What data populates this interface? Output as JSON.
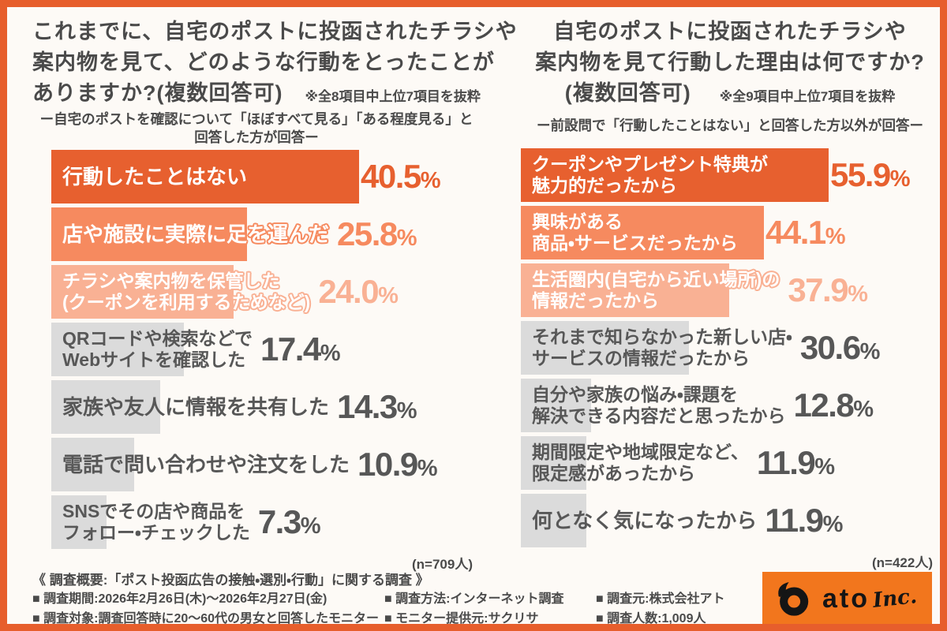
{
  "palette": {
    "frame_border": "#E75E2C",
    "background": "#FDFAF6",
    "rank1_orange": "#E7602F",
    "rank2_orange": "#F68A5F",
    "rank3_salmon": "#F9B194",
    "gray_bar": "#DBDBDB",
    "dark_text": "#4A4A4A",
    "gray_value_text": "#575757",
    "logo_orange": "#F2761D"
  },
  "chart_data": [
    {
      "type": "bar",
      "orientation": "horizontal",
      "title": "これまでに、自宅のポストに投函されたチラシや案内物を見て、どのような行動をとったことがありますか?(複数回答可)",
      "title_lines": [
        "これまでに、自宅のポストに投函されたチラシや",
        "案内物を見て、どのような行動をとったことが",
        "ありますか?(複数回答可)"
      ],
      "note": "※全8項目中上位7項目を抜粋",
      "subtitle_lines": [
        "ー自宅のポストを確認について「ほぼすべて見る」「ある程度見る」と",
        "回答した方が回答ー"
      ],
      "sample_label": "(n=709人)",
      "unit": "%",
      "xlim": [
        0,
        42
      ],
      "grid": false,
      "legend": false,
      "categories": [
        "行動したことはない",
        "店や施設に実際に足を運んだ",
        "チラシや案内物を保管した\n(クーポンを利用するためなど)",
        "QRコードや検索などで\nWebサイトを確認した",
        "家族や友人に情報を共有した",
        "電話で問い合わせや注文をした",
        "SNSでその店や商品を\nフォロー・チェックした"
      ],
      "values": [
        40.5,
        25.8,
        24.0,
        17.4,
        14.3,
        10.9,
        7.3
      ],
      "value_labels": [
        "40.5%",
        "25.8%",
        "24.0%",
        "17.4%",
        "14.3%",
        "10.9%",
        "7.3%"
      ],
      "bar_colors": [
        "#E7602F",
        "#F68A5F",
        "#F9B194",
        "#DBDBDB",
        "#DBDBDB",
        "#DBDBDB",
        "#DBDBDB"
      ],
      "label_colors": [
        "#FFFFFF",
        "#FFFFFF",
        "#FFFFFF",
        "#575757",
        "#575757",
        "#575757",
        "#575757"
      ],
      "value_colors": [
        "#E7602F",
        "#F68A5F",
        "#F9B194",
        "#575757",
        "#575757",
        "#575757",
        "#575757"
      ]
    },
    {
      "type": "bar",
      "orientation": "horizontal",
      "title": "自宅のポストに投函されたチラシや案内物を見て行動した理由は何ですか?(複数回答可)",
      "title_lines": [
        "自宅のポストに投函されたチラシや",
        "案内物を見て行動した理由は何ですか?",
        "(複数回答可)"
      ],
      "note": "※全9項目中上位7項目を抜粋",
      "subtitle_lines": [
        "ー前設問で「行動したことはない」と回答した方以外が回答ー"
      ],
      "sample_label": "(n=422人)",
      "unit": "%",
      "xlim": [
        0,
        58
      ],
      "grid": false,
      "legend": false,
      "categories": [
        "クーポンやプレゼント特典が\n魅力的だったから",
        "興味がある\n商品・サービスだったから",
        "生活圏内(自宅から近い場所)の\n情報だったから",
        "それまで知らなかった新しい店・\nサービスの情報だったから",
        "自分や家族の悩み・課題を\n解決できる内容だと思ったから",
        "期間限定や地域限定など、\n限定感があったから",
        "何となく気になったから"
      ],
      "values": [
        55.9,
        44.1,
        37.9,
        30.6,
        12.8,
        11.9,
        11.9
      ],
      "value_labels": [
        "55.9%",
        "44.1%",
        "37.9%",
        "30.6%",
        "12.8%",
        "11.9%",
        "11.9%"
      ],
      "bar_colors": [
        "#E7602F",
        "#F68A5F",
        "#F9B194",
        "#DBDBDB",
        "#DBDBDB",
        "#DBDBDB",
        "#DBDBDB"
      ],
      "label_colors": [
        "#FFFFFF",
        "#FFFFFF",
        "#FFFFFF",
        "#575757",
        "#575757",
        "#575757",
        "#575757"
      ],
      "value_colors": [
        "#E7602F",
        "#F68A5F",
        "#F9B194",
        "#575757",
        "#575757",
        "#575757",
        "#575757"
      ]
    }
  ],
  "footer": {
    "heading": "《 調査概要:「ポスト投函広告の接触・選別・行動」に関する調査 》",
    "rows": [
      [
        "■ 調査期間:2026年2月26日(木)〜2026年2月27日(金)",
        "■ 調査方法:インターネット調査",
        "■ 調査元:株式会社アト"
      ],
      [
        "■ 調査対象:調査回答時に20〜60代の男女と回答したモニター",
        "■ モニター提供元:サクリサ",
        "■ 調査人数:1,009人"
      ]
    ]
  },
  "logo": {
    "text": "ato",
    "suffix": "Inc."
  }
}
